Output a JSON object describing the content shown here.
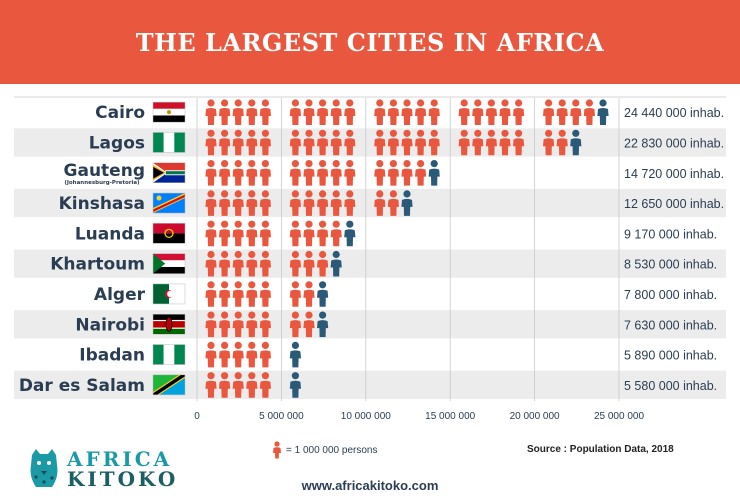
{
  "header": {
    "title": "THE LARGEST CITIES IN AFRICA"
  },
  "legend": {
    "unit_label": "= 1 000 000 persons",
    "unit_value": 1000000
  },
  "source": "Source : Population Data, 2018",
  "website": "www.africakitoko.com",
  "logo": {
    "line1": "AFRICA",
    "line2": "KITOKO"
  },
  "colors": {
    "banner": "#e9573f",
    "person_full": "#e9573f",
    "person_partial": "#2b5a78",
    "text": "#2b3d52",
    "row_alt": "#ececec"
  },
  "chart_data": {
    "type": "bar",
    "categories": [
      "Cairo",
      "Lagos",
      "Gauteng",
      "Kinshasa",
      "Luanda",
      "Khartoum",
      "Alger",
      "Nairobi",
      "Ibadan",
      "Dar es Salam"
    ],
    "subtitles": [
      "",
      "",
      "(Johannesburg-Pretoria)",
      "",
      "",
      "",
      "",
      "",
      "",
      ""
    ],
    "values": [
      24440000,
      22830000,
      14720000,
      12650000,
      9170000,
      8530000,
      7800000,
      7630000,
      5890000,
      5580000
    ],
    "value_labels": [
      "24 440 000 inhab.",
      "22 830 000 inhab.",
      "14 720 000 inhab.",
      "12 650 000 inhab.",
      "9 170 000 inhab.",
      "8 530 000 inhab.",
      "7 800 000 inhab.",
      "7 630 000 inhab.",
      "5 890 000 inhab.",
      "5 580 000 inhab."
    ],
    "flags": [
      "egypt-flag",
      "nigeria-flag",
      "south-africa-flag",
      "dr-congo-flag",
      "angola-flag",
      "sudan-flag",
      "algeria-flag",
      "kenya-flag",
      "nigeria-flag",
      "tanzania-flag"
    ],
    "x_ticks": [
      0,
      5000000,
      10000000,
      15000000,
      20000000,
      25000000
    ],
    "x_tick_labels": [
      "0",
      "5 000 000",
      "10 000 000",
      "15 000 000",
      "20 000 000",
      "25 000 000"
    ],
    "xlim": [
      0,
      25000000
    ],
    "grid": true
  }
}
